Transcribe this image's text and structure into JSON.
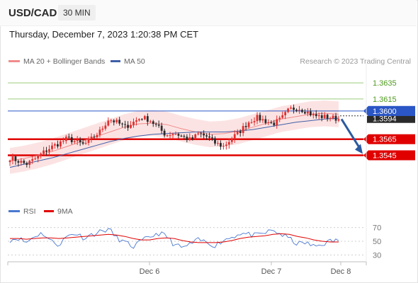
{
  "header": {
    "symbol": "USD/CAD",
    "timeframe": "30 MIN",
    "datetime": "Thursday, December 7, 2023 1:20:38 PM CET"
  },
  "legend": {
    "ma20_bb": "MA 20 + Bollinger Bands",
    "ma50": "MA 50",
    "credit": "Research © 2023 Trading Central",
    "rsi": "RSI",
    "ma9": "9MA"
  },
  "colors": {
    "bull": "#e03030",
    "bear": "#2a2a2a",
    "bb_fill": "#fbd9d9",
    "ma20": "#f08c8c",
    "ma50": "#3f5fa8",
    "resistance": "#9acb7a",
    "resistance_text": "#4f9a1e",
    "support": "#e00000",
    "pivot": "#2a56c6",
    "arrow": "#2c5aa0",
    "rsi": "#4a78d0",
    "rsi_ma": "#e00000"
  },
  "chart_data": [
    {
      "type": "candlestick",
      "price_range": [
        1.3505,
        1.365
      ],
      "levels": [
        {
          "price": 1.3635,
          "label": "1.3635",
          "kind": "resistance"
        },
        {
          "price": 1.3615,
          "label": "1.3615",
          "kind": "resistance"
        },
        {
          "price": 1.36,
          "label": "1.3600",
          "kind": "pivot"
        },
        {
          "price": 1.3565,
          "label": "1.3565",
          "kind": "support"
        },
        {
          "price": 1.3545,
          "label": "1.3545",
          "kind": "support"
        }
      ],
      "last_price": {
        "price": 1.3594,
        "label": "1.3594"
      },
      "x_labels": [
        "Dec 6",
        "Dec 7",
        "Dec 8"
      ],
      "close_path": [
        1.3542,
        1.3538,
        1.3534,
        1.354,
        1.3548,
        1.3555,
        1.356,
        1.3566,
        1.3562,
        1.3558,
        1.3566,
        1.3575,
        1.359,
        1.3586,
        1.358,
        1.3586,
        1.3592,
        1.3589,
        1.358,
        1.357,
        1.3573,
        1.3568,
        1.3564,
        1.3572,
        1.3568,
        1.356,
        1.3556,
        1.3566,
        1.3575,
        1.3586,
        1.3592,
        1.3588,
        1.3584,
        1.359,
        1.3602,
        1.3604,
        1.36,
        1.3594,
        1.3593,
        1.3592,
        1.359
      ],
      "series": [
        {
          "name": "MA 20 + Bollinger Bands",
          "values": [
            1.3538,
            1.3541,
            1.3545,
            1.355,
            1.3556,
            1.3562,
            1.3568,
            1.3574,
            1.358,
            1.3584,
            1.3585,
            1.3583,
            1.3578,
            1.3574,
            1.3571,
            1.3572,
            1.3575,
            1.358,
            1.3585,
            1.359,
            1.3593,
            1.3596,
            1.3597,
            1.3596
          ]
        },
        {
          "name": "MA 50",
          "values": [
            1.353,
            1.3534,
            1.3538,
            1.3542,
            1.3547,
            1.3552,
            1.3557,
            1.3562,
            1.3566,
            1.3569,
            1.3571,
            1.3572,
            1.3573,
            1.3574,
            1.3574,
            1.3574,
            1.3575,
            1.3577,
            1.358,
            1.3583,
            1.3586,
            1.3588,
            1.359,
            1.3591
          ]
        }
      ],
      "forecast_arrow": {
        "from": 1.359,
        "to": 1.3545
      }
    },
    {
      "type": "line",
      "name": "RSI",
      "y_range": [
        20,
        80
      ],
      "y_ticks": [
        "70",
        "50",
        "30"
      ],
      "series": [
        {
          "name": "RSI",
          "values": [
            52,
            55,
            48,
            58,
            62,
            50,
            45,
            58,
            62,
            55,
            60,
            64,
            68,
            55,
            48,
            42,
            50,
            56,
            62,
            58,
            45,
            40,
            46,
            52,
            48,
            44,
            52,
            56,
            62,
            60,
            58,
            62,
            66,
            60,
            54,
            46,
            48,
            42,
            46,
            50,
            52
          ]
        },
        {
          "name": "9MA",
          "values": [
            54,
            54,
            53,
            54,
            55,
            55,
            54,
            55,
            56,
            57,
            58,
            59,
            60,
            59,
            57,
            54,
            52,
            52,
            54,
            55,
            54,
            51,
            49,
            48,
            48,
            48,
            49,
            51,
            54,
            56,
            57,
            58,
            60,
            61,
            60,
            57,
            55,
            52,
            50,
            49,
            49
          ]
        }
      ]
    }
  ]
}
